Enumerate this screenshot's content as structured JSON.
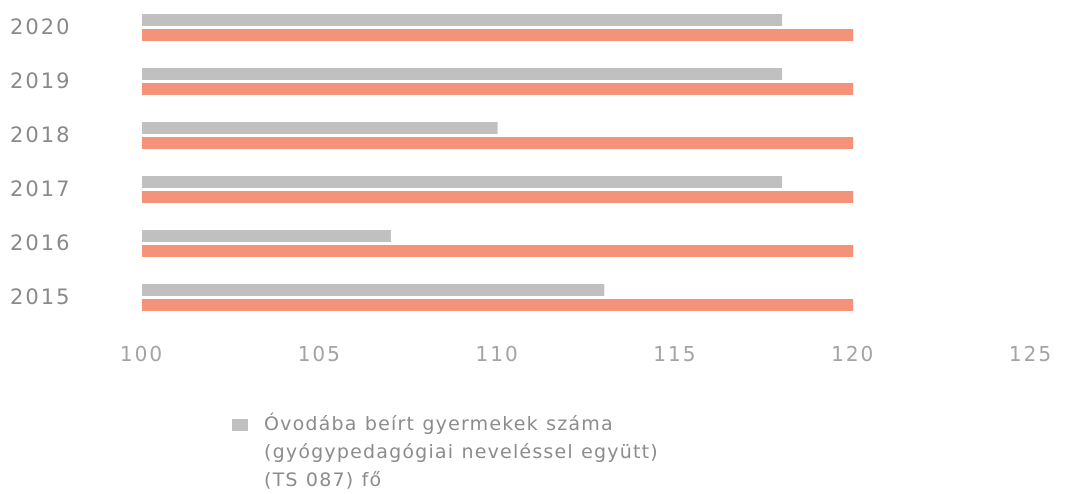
{
  "chart_data": {
    "type": "bar",
    "orientation": "horizontal",
    "categories": [
      "2020",
      "2019",
      "2018",
      "2017",
      "2016",
      "2015"
    ],
    "series": [
      {
        "name_lines": [
          "Óvodába beírt gyermekek száma",
          "(gyógypedagógiai neveléssel együtt)",
          "(TS 087) fő"
        ],
        "color": "#c0c0c0",
        "values": [
          118,
          118,
          110,
          118,
          107,
          113
        ]
      },
      {
        "color": "#f5937a",
        "values": [
          120,
          120,
          120,
          120,
          120,
          120
        ]
      }
    ],
    "x_ticks": [
      "100",
      "105",
      "110",
      "115",
      "120",
      "125"
    ],
    "xlim": [
      100,
      125
    ],
    "grid": false,
    "legend_position": "bottom"
  }
}
